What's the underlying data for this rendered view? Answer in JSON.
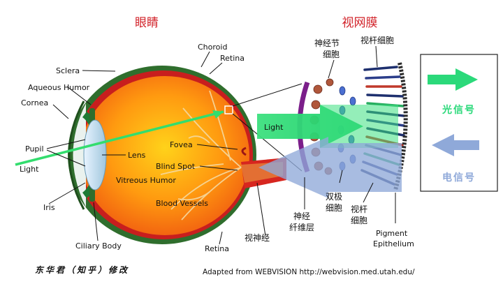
{
  "titles": {
    "eye": "眼睛",
    "retina": "视网膜"
  },
  "eye_labels": {
    "sclera": "Sclera",
    "aqueous_humor": "Aqueous Humor",
    "cornea": "Cornea",
    "pupil": "Pupil",
    "light": "Light",
    "iris": "Iris",
    "ciliary_body": "Ciliary Body",
    "choroid": "Choroid",
    "retina_top": "Retina",
    "lens": "Lens",
    "fovea": "Fovea",
    "blind_spot": "Blind Spot",
    "vitreous_humor": "Vitreous Humor",
    "blood_vessels": "Blood Vessels",
    "retina_bottom": "Retina",
    "optic_nerve": "视神经"
  },
  "retina_labels": {
    "ganglion_cells": [
      "神经节",
      "细胞"
    ],
    "rod_cells_top": "视杆细胞",
    "light_beam": "Light",
    "bipolar_cells": [
      "双极",
      "细胞"
    ],
    "nerve_fiber_layer": [
      "神经",
      "纤维层"
    ],
    "rod_cells_bottom": [
      "视杆",
      "细胞"
    ],
    "pigment_epithelium": [
      "Pigment",
      "Epithelium"
    ]
  },
  "legend": {
    "light_signal": "光信号",
    "electric_signal": "电信号",
    "light_color": "#2bd97a",
    "electric_color": "#8fa9d9"
  },
  "credits": {
    "modifier": "东华君（知乎）修改",
    "source": "Adapted from WEBVISION http://webvision.med.utah.edu/"
  }
}
